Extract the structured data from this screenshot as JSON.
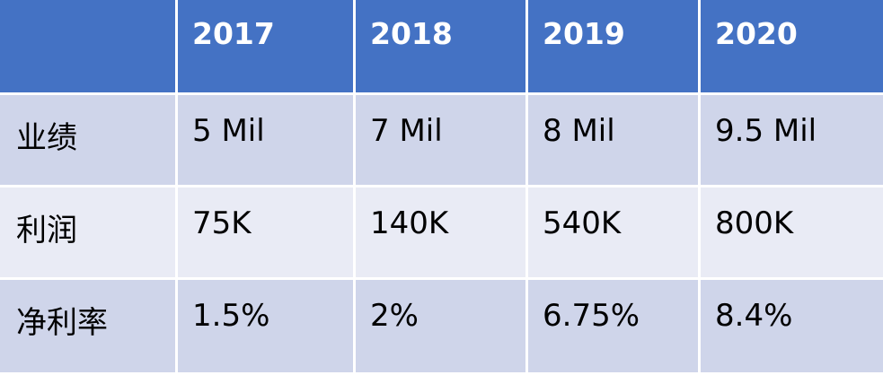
{
  "chart_data": {
    "type": "table",
    "columns": [
      "",
      "2017",
      "2018",
      "2019",
      "2020"
    ],
    "rows": [
      {
        "label": "业绩",
        "values": [
          "5 Mil",
          "7 Mil",
          "8 Mil",
          "9.5 Mil"
        ]
      },
      {
        "label": "利润",
        "values": [
          "75K",
          "140K",
          "540K",
          "800K"
        ]
      },
      {
        "label": "净利率",
        "values": [
          "1.5%",
          "2%",
          "6.75%",
          "8.4%"
        ]
      }
    ]
  },
  "colors": {
    "header_bg": "#4472c4",
    "header_text": "#ffffff",
    "band_dark": "#cfd5ea",
    "band_light": "#e9ebf5"
  }
}
